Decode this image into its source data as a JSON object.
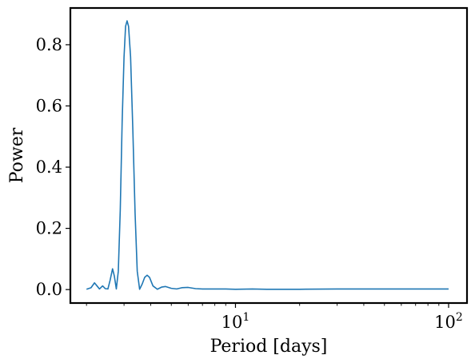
{
  "chart_data": {
    "type": "line",
    "title": "",
    "xlabel": "Period [days]",
    "ylabel": "Power",
    "x_scale": "log",
    "xlim": [
      1.68,
      122
    ],
    "ylim": [
      -0.044,
      0.92
    ],
    "x_ticks": [
      {
        "value": 10,
        "base": "10",
        "exp": "1"
      },
      {
        "value": 100,
        "base": "10",
        "exp": "2"
      }
    ],
    "y_ticks": [
      {
        "value": 0.0,
        "label": "0.0"
      },
      {
        "value": 0.2,
        "label": "0.2"
      },
      {
        "value": 0.4,
        "label": "0.4"
      },
      {
        "value": 0.6,
        "label": "0.6"
      },
      {
        "value": 0.8,
        "label": "0.8"
      }
    ],
    "grid": false,
    "legend": "none",
    "series": [
      {
        "color": "#1f77b4",
        "points": [
          [
            2.0,
            0.001
          ],
          [
            2.1,
            0.006
          ],
          [
            2.18,
            0.022
          ],
          [
            2.24,
            0.012
          ],
          [
            2.3,
            0.002
          ],
          [
            2.38,
            0.012
          ],
          [
            2.45,
            0.003
          ],
          [
            2.52,
            0.002
          ],
          [
            2.58,
            0.03
          ],
          [
            2.65,
            0.068
          ],
          [
            2.7,
            0.045
          ],
          [
            2.76,
            0.002
          ],
          [
            2.82,
            0.06
          ],
          [
            2.88,
            0.26
          ],
          [
            2.94,
            0.55
          ],
          [
            3.0,
            0.76
          ],
          [
            3.05,
            0.86
          ],
          [
            3.1,
            0.878
          ],
          [
            3.15,
            0.86
          ],
          [
            3.22,
            0.76
          ],
          [
            3.3,
            0.52
          ],
          [
            3.38,
            0.25
          ],
          [
            3.46,
            0.06
          ],
          [
            3.55,
            0.001
          ],
          [
            3.65,
            0.018
          ],
          [
            3.75,
            0.04
          ],
          [
            3.85,
            0.047
          ],
          [
            3.95,
            0.04
          ],
          [
            4.1,
            0.012
          ],
          [
            4.3,
            0.001
          ],
          [
            4.5,
            0.008
          ],
          [
            4.7,
            0.01
          ],
          [
            5.0,
            0.004
          ],
          [
            5.3,
            0.002
          ],
          [
            5.6,
            0.006
          ],
          [
            6.0,
            0.007
          ],
          [
            6.5,
            0.003
          ],
          [
            7.0,
            0.002
          ],
          [
            8.0,
            0.002
          ],
          [
            9.0,
            0.002
          ],
          [
            10.0,
            0.001
          ],
          [
            12.0,
            0.002
          ],
          [
            14.0,
            0.001
          ],
          [
            20.0,
            0.001
          ],
          [
            30.0,
            0.002
          ],
          [
            50.0,
            0.002
          ],
          [
            70.0,
            0.002
          ],
          [
            100.0,
            0.002
          ]
        ]
      }
    ]
  }
}
